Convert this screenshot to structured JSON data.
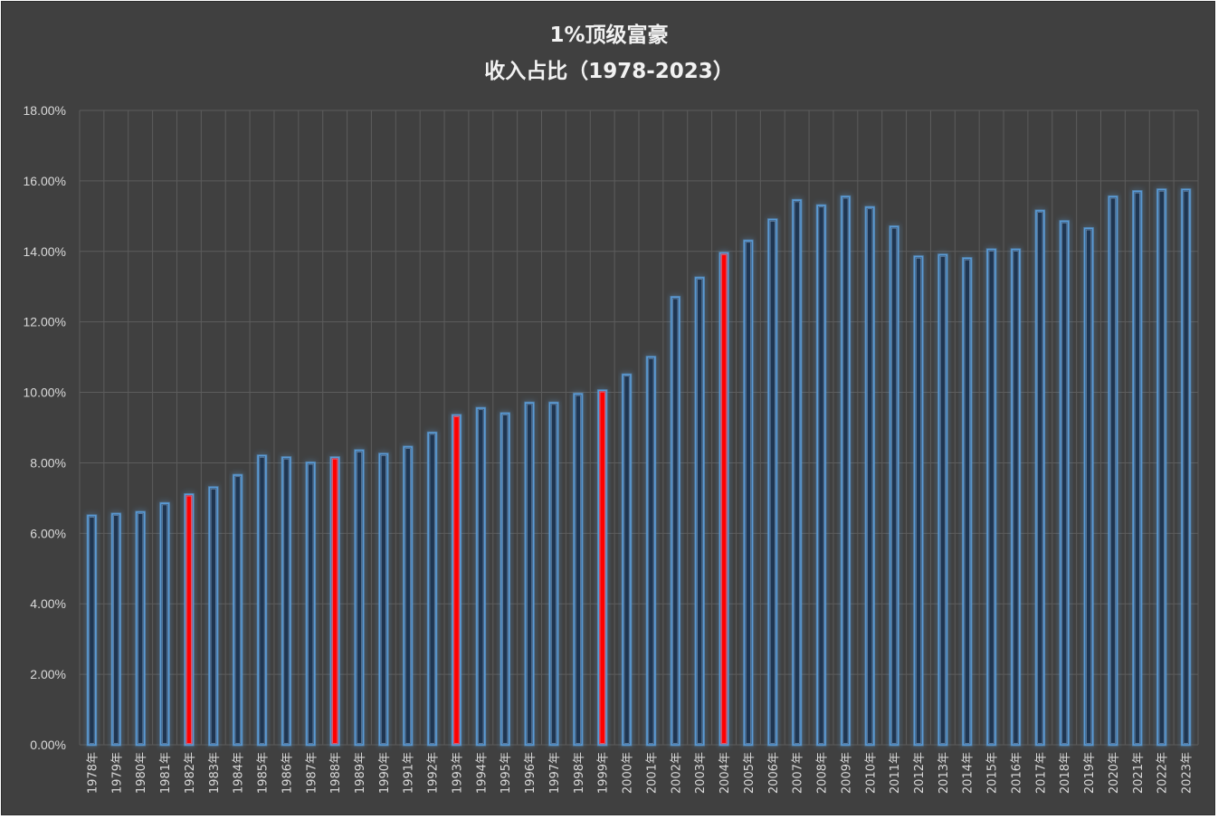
{
  "chart_data": {
    "type": "bar",
    "title": [
      "1%顶级富豪",
      "收入占比（1978-2023）"
    ],
    "xlabel": "",
    "ylabel": "",
    "ylim": [
      0,
      0.18
    ],
    "y_ticks": [
      "0.00%",
      "2.00%",
      "4.00%",
      "6.00%",
      "8.00%",
      "10.00%",
      "12.00%",
      "14.00%",
      "16.00%",
      "18.00%"
    ],
    "grid": true,
    "legend": "none",
    "colors": {
      "bar": "#5b9bd5",
      "highlight": "#ff0000",
      "background": "#404040",
      "grid": "#5c5c5c",
      "text": "#d9d9d9"
    },
    "categories": [
      "1978年",
      "1979年",
      "1980年",
      "1981年",
      "1982年",
      "1983年",
      "1984年",
      "1985年",
      "1986年",
      "1987年",
      "1988年",
      "1989年",
      "1990年",
      "1991年",
      "1992年",
      "1993年",
      "1994年",
      "1995年",
      "1996年",
      "1997年",
      "1998年",
      "1999年",
      "2000年",
      "2001年",
      "2002年",
      "2003年",
      "2004年",
      "2005年",
      "2006年",
      "2007年",
      "2008年",
      "2009年",
      "2010年",
      "2011年",
      "2012年",
      "2013年",
      "2014年",
      "2015年",
      "2016年",
      "2017年",
      "2018年",
      "2019年",
      "2020年",
      "2021年",
      "2022年",
      "2023年"
    ],
    "values": [
      0.065,
      0.0655,
      0.066,
      0.0685,
      0.071,
      0.073,
      0.0765,
      0.082,
      0.0815,
      0.08,
      0.0815,
      0.0835,
      0.0825,
      0.0845,
      0.0885,
      0.0935,
      0.0955,
      0.094,
      0.097,
      0.097,
      0.0995,
      0.1005,
      0.105,
      0.11,
      0.127,
      0.1325,
      0.1395,
      0.143,
      0.149,
      0.1545,
      0.153,
      0.1555,
      0.1525,
      0.147,
      0.1385,
      0.139,
      0.138,
      0.1405,
      0.1405,
      0.1515,
      0.1485,
      0.1465,
      0.1555,
      0.157,
      0.1575,
      0.1575
    ],
    "highlighted_categories": [
      "1982年",
      "1988年",
      "1993年",
      "1999年",
      "2004年"
    ]
  }
}
